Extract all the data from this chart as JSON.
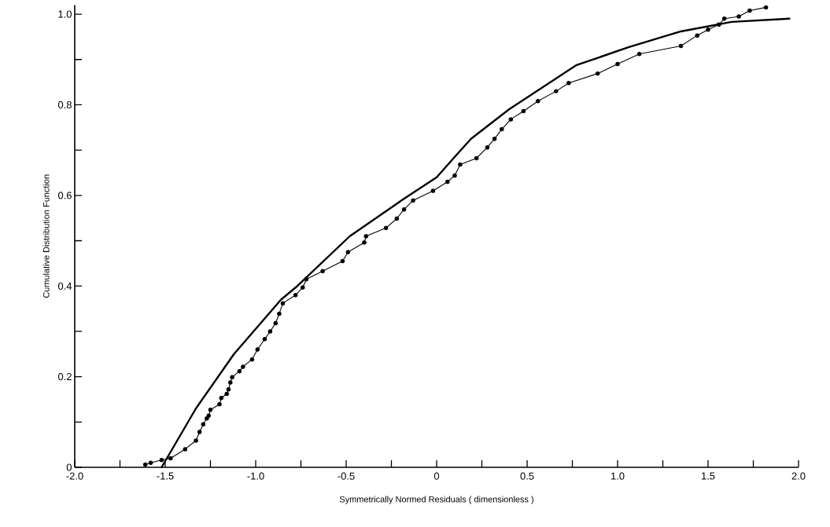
{
  "chart_data": {
    "type": "line",
    "xlabel": "Symmetrically  Normed  Residuals  ( dimensionless )",
    "ylabel": "Cumulative  Distribution  Function",
    "xlim": [
      -2,
      2
    ],
    "ylim": [
      0,
      1.02
    ],
    "xticks": [
      {
        "value": -2,
        "label": "-2.0"
      },
      {
        "value": -1.75,
        "label": null
      },
      {
        "value": -1.5,
        "label": "-1.5"
      },
      {
        "value": -1.25,
        "label": null
      },
      {
        "value": -1,
        "label": "-1.0"
      },
      {
        "value": -0.75,
        "label": null
      },
      {
        "value": -0.5,
        "label": "-0.5"
      },
      {
        "value": -0.25,
        "label": null
      },
      0,
      {
        "value": 0.25,
        "label": null
      },
      0.5,
      {
        "value": 0.75,
        "label": null
      },
      {
        "value": 1,
        "label": "1.0"
      },
      {
        "value": 1.25,
        "label": null
      },
      1.5,
      {
        "value": 1.75,
        "label": null
      },
      {
        "value": 2,
        "label": "2.0"
      }
    ],
    "yticks": [
      0,
      {
        "value": 0.1,
        "label": null
      },
      0.2,
      {
        "value": 0.3,
        "label": null
      },
      0.4,
      {
        "value": 0.5,
        "label": null
      },
      0.6,
      {
        "value": 0.7,
        "label": null
      },
      0.8,
      {
        "value": 0.9,
        "label": null
      },
      {
        "value": 1,
        "label": "1.0"
      }
    ],
    "grid": false,
    "series": [
      {
        "color": "#000000",
        "marker": "none",
        "x": [
          -1.52,
          -1.33,
          -1.12,
          -0.86,
          -0.77,
          -0.48,
          -0.19,
          0.0,
          0.1,
          0.19,
          0.4,
          0.77,
          1.06,
          1.35,
          1.63,
          1.95
        ],
        "values": [
          0.0,
          0.13,
          0.25,
          0.37,
          0.4,
          0.51,
          0.59,
          0.64,
          0.685,
          0.725,
          0.79,
          0.887,
          0.927,
          0.962,
          0.983,
          0.99
        ]
      },
      {
        "color": "#000000",
        "marker": "circle",
        "x": [
          -1.61,
          -1.58,
          -1.52,
          -1.47,
          -1.39,
          -1.33,
          -1.31,
          -1.29,
          -1.27,
          -1.26,
          -1.25,
          -1.2,
          -1.19,
          -1.16,
          -1.15,
          -1.14,
          -1.13,
          -1.09,
          -1.07,
          -1.02,
          -0.99,
          -0.95,
          -0.92,
          -0.89,
          -0.87,
          -0.85,
          -0.78,
          -0.74,
          -0.72,
          -0.63,
          -0.52,
          -0.49,
          -0.4,
          -0.39,
          -0.28,
          -0.22,
          -0.18,
          -0.13,
          -0.02,
          0.06,
          0.1,
          0.13,
          0.22,
          0.28,
          0.32,
          0.36,
          0.41,
          0.48,
          0.56,
          0.66,
          0.73,
          0.89,
          1.0,
          1.12,
          1.35,
          1.44,
          1.5,
          1.56,
          1.59,
          1.67,
          1.73,
          1.82
        ],
        "values": [
          0.006,
          0.01,
          0.016,
          0.02,
          0.04,
          0.059,
          0.078,
          0.095,
          0.108,
          0.114,
          0.127,
          0.139,
          0.153,
          0.162,
          0.172,
          0.187,
          0.199,
          0.212,
          0.222,
          0.238,
          0.26,
          0.283,
          0.3,
          0.318,
          0.339,
          0.362,
          0.38,
          0.397,
          0.415,
          0.433,
          0.455,
          0.475,
          0.496,
          0.51,
          0.528,
          0.549,
          0.569,
          0.589,
          0.61,
          0.63,
          0.644,
          0.668,
          0.682,
          0.706,
          0.725,
          0.746,
          0.768,
          0.786,
          0.808,
          0.83,
          0.848,
          0.869,
          0.89,
          0.912,
          0.93,
          0.953,
          0.966,
          0.977,
          0.99,
          0.995,
          1.008,
          1.015
        ]
      }
    ]
  }
}
